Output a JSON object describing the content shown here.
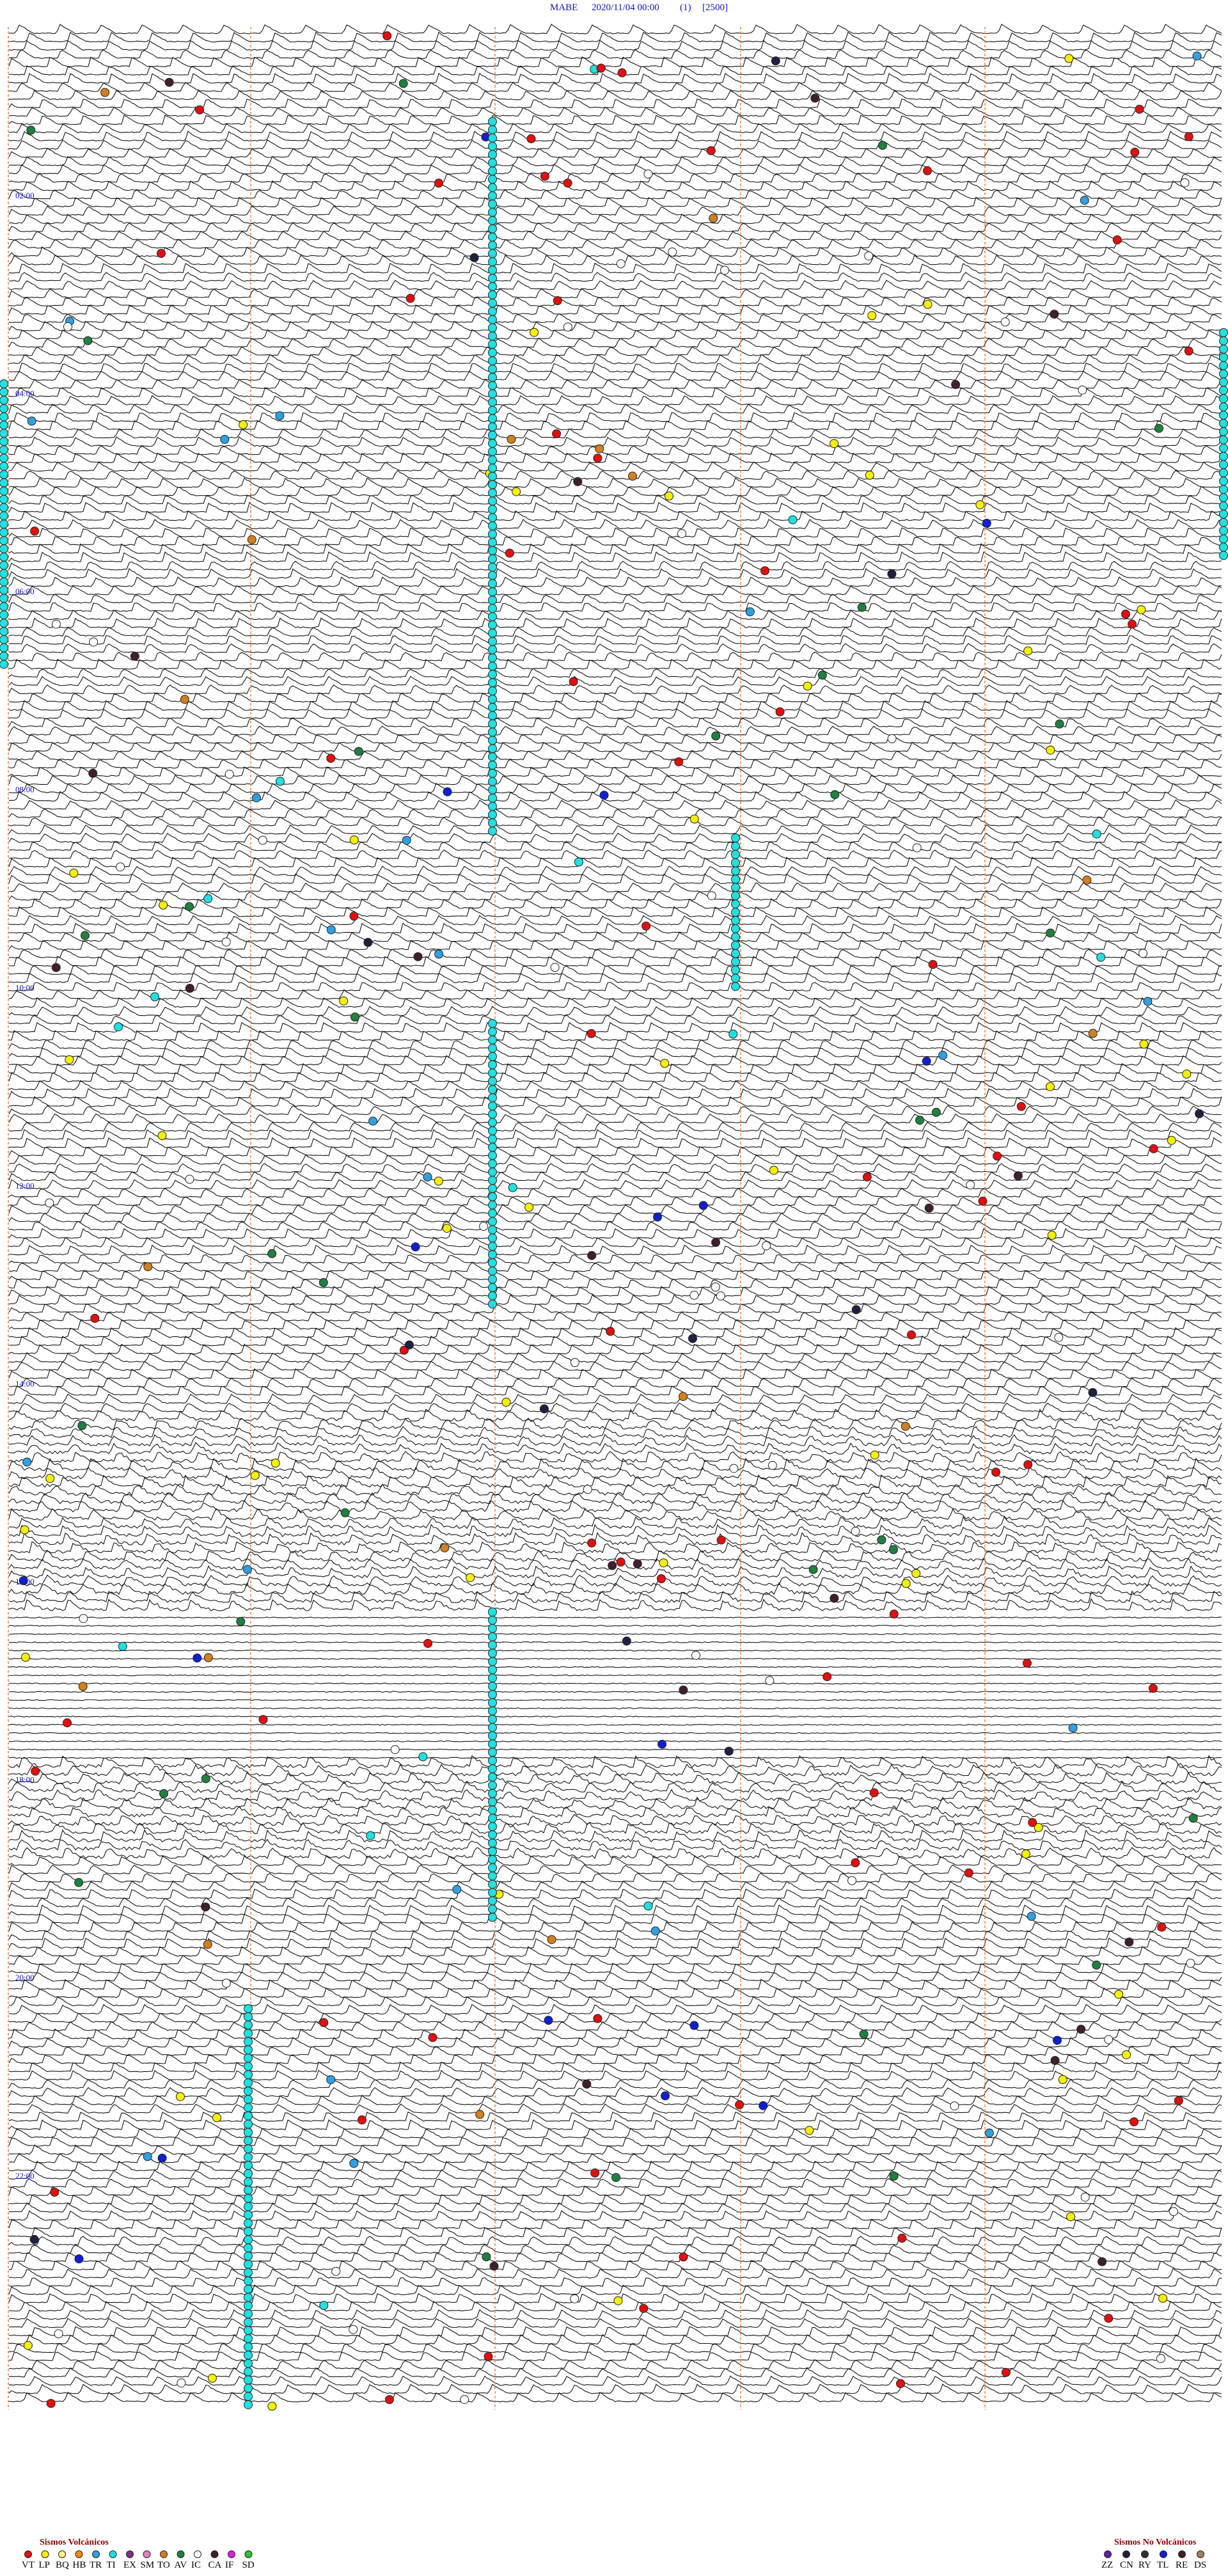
{
  "header": {
    "station": "MABE",
    "datetime": "2020/11/04 00:00",
    "channel": "(1)",
    "gain": "[2500]"
  },
  "time_labels": [
    "02:00",
    "04:00",
    "06:00",
    "08:00",
    "10:00",
    "12:00",
    "14:00",
    "16:00",
    "18:00",
    "20:00",
    "22:00"
  ],
  "legend_volcanic": {
    "title": "Sismos Volcánicos",
    "items": [
      {
        "label": "VT",
        "color": "#e01010"
      },
      {
        "label": "LP",
        "color": "#f4f000"
      },
      {
        "label": "BQ",
        "color": "#f8f080"
      },
      {
        "label": "HB",
        "color": "#ff8800"
      },
      {
        "label": "TR",
        "color": "#30a0e0"
      },
      {
        "label": "TI",
        "color": "#20e0e0"
      },
      {
        "label": "EX",
        "color": "#803080"
      },
      {
        "label": "SM",
        "color": "#e080c0"
      },
      {
        "label": "TO",
        "color": "#d08020"
      },
      {
        "label": "AV",
        "color": "#208040"
      },
      {
        "label": "IC",
        "color": "#ffffff"
      },
      {
        "label": "CA",
        "color": "#402030"
      },
      {
        "label": "IF",
        "color": "#e020e0"
      },
      {
        "label": "SD",
        "color": "#30c030"
      }
    ]
  },
  "legend_nonvolcanic": {
    "title": "Sismos No Volcánicos",
    "items": [
      {
        "label": "ZZ",
        "color": "#6020a0"
      },
      {
        "label": "CN",
        "color": "#202040"
      },
      {
        "label": "RY",
        "color": "#303030"
      },
      {
        "label": "TL",
        "color": "#1020d0"
      },
      {
        "label": "RE",
        "color": "#402020"
      },
      {
        "label": "DS",
        "color": "#a08060"
      }
    ]
  }
}
